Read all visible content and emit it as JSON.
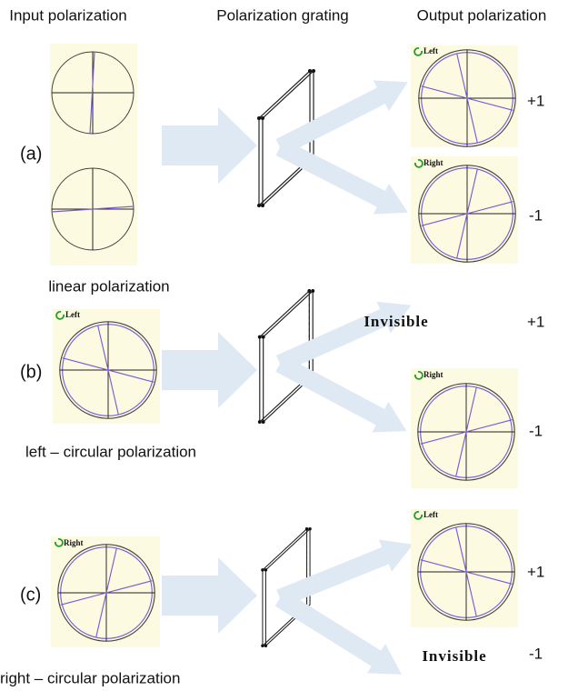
{
  "columns": [
    "Input polarization",
    "Polarization grating",
    "Output polarization"
  ],
  "rows": [
    {
      "label": "(a)",
      "caption": "linear polarization",
      "outputs": [
        {
          "badge": "Left",
          "order": "+1"
        },
        {
          "badge": "Right",
          "order": "-1"
        }
      ]
    },
    {
      "label": "(b)",
      "caption": "left – circular polarization",
      "input_badge": "Left",
      "outputs": [
        {
          "text": "Invisible",
          "order": "+1"
        },
        {
          "badge": "Right",
          "order": "-1"
        }
      ]
    },
    {
      "label": "(c)",
      "caption": "right – circular polarization",
      "input_badge": "Right",
      "outputs": [
        {
          "badge": "Left",
          "order": "+1"
        },
        {
          "text": "Invisible",
          "order": "-1"
        }
      ]
    }
  ]
}
